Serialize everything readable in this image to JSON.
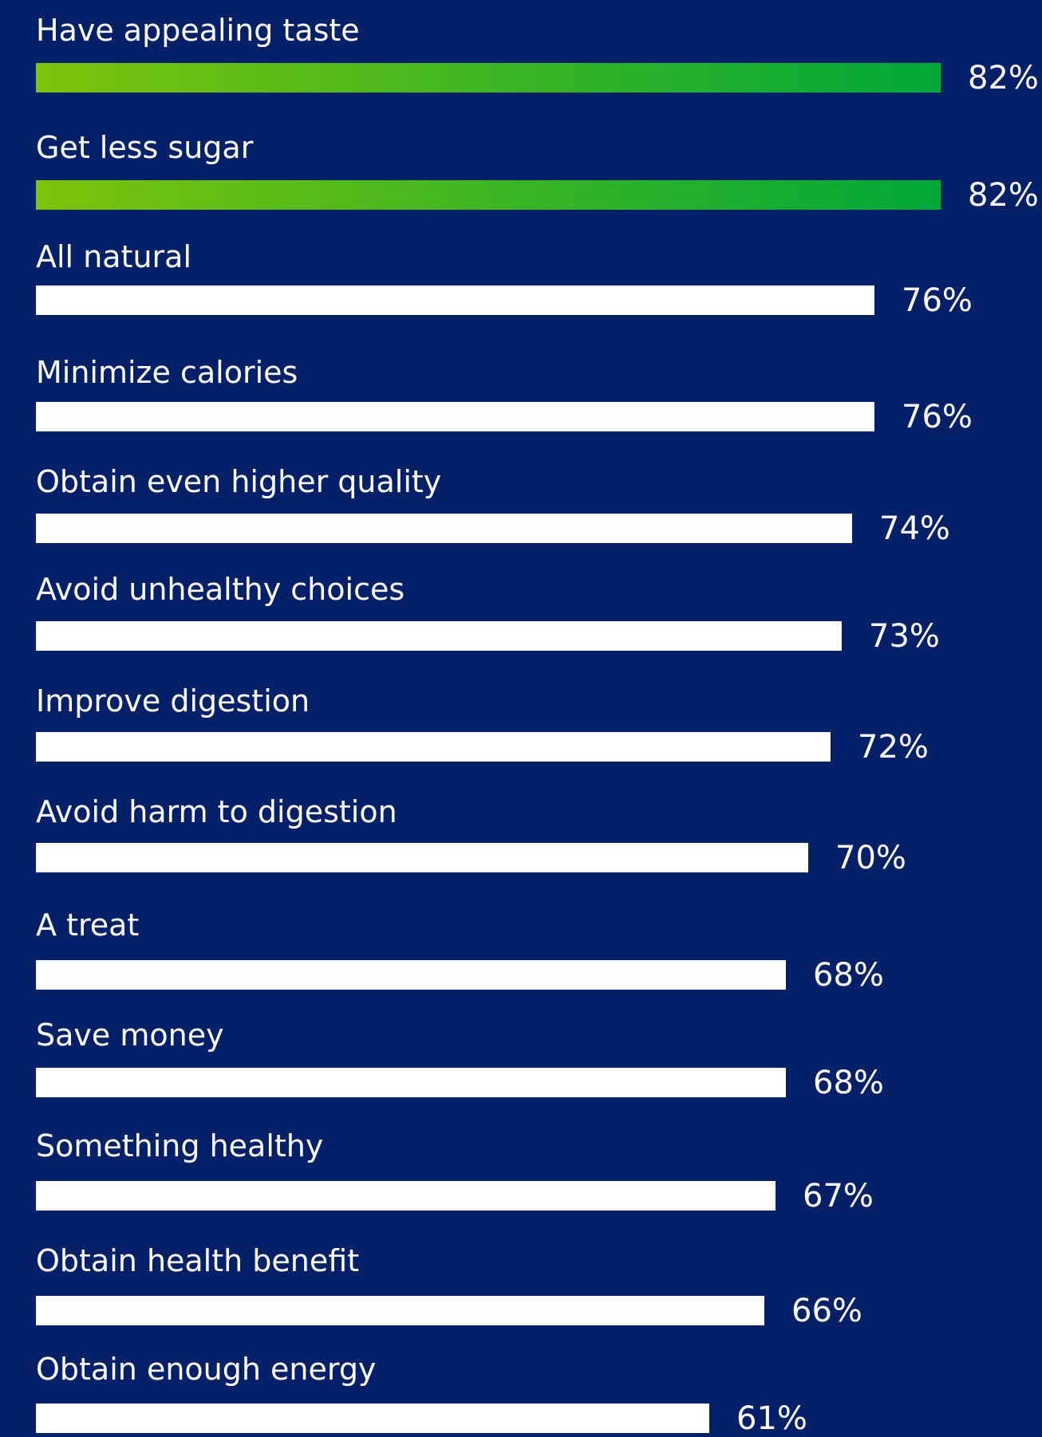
{
  "chart_data": {
    "type": "bar",
    "orientation": "horizontal",
    "categories": [
      "Have appealing taste",
      "Get less sugar",
      "All natural",
      "Minimize calories",
      "Obtain even higher quality",
      "Avoid unhealthy choices",
      "Improve digestion",
      "Avoid harm to digestion",
      "A treat",
      "Save money",
      "Something healthy",
      "Obtain health benefit",
      "Obtain enough energy"
    ],
    "values": [
      82,
      82,
      76,
      76,
      74,
      73,
      72,
      70,
      68,
      68,
      67,
      66,
      61
    ],
    "value_labels": [
      "82%",
      "82%",
      "76%",
      "76%",
      "74%",
      "73%",
      "72%",
      "70%",
      "68%",
      "68%",
      "67%",
      "66%",
      "61%"
    ],
    "highlighted": [
      true,
      true,
      false,
      false,
      false,
      false,
      false,
      false,
      false,
      false,
      false,
      false,
      false
    ],
    "colors": {
      "background": "#042068",
      "bar": "#ffffff",
      "highlight_start": "#7dc30a",
      "highlight_end": "#00a83a",
      "text": "#ffffff"
    }
  }
}
